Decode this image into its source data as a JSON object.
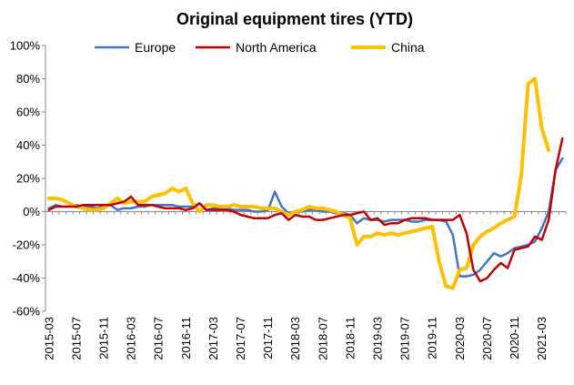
{
  "chart_data": {
    "type": "line",
    "title": "Original equipment tires (YTD)",
    "xlabel": "",
    "ylabel": "",
    "ylim": [
      -0.6,
      1.0
    ],
    "y_ticks": [
      -0.6,
      -0.4,
      -0.2,
      0,
      0.2,
      0.4,
      0.6,
      0.8,
      1.0
    ],
    "y_tick_labels": [
      "-60%",
      "-40%",
      "-20%",
      "0%",
      "20%",
      "40%",
      "60%",
      "80%",
      "100%"
    ],
    "x_tick_labels": [
      "2015-03",
      "2015-07",
      "2015-11",
      "2016-03",
      "2016-07",
      "2016-11",
      "2017-03",
      "2017-07",
      "2017-11",
      "2018-03",
      "2018-07",
      "2018-11",
      "2019-03",
      "2019-07",
      "2019-11",
      "2020-03",
      "2020-07",
      "2020-11",
      "2021-03"
    ],
    "x_tick_interval_months": 4,
    "grid": false,
    "legend_position": "top",
    "categories": [
      "2015-03",
      "2015-04",
      "2015-05",
      "2015-06",
      "2015-07",
      "2015-08",
      "2015-09",
      "2015-10",
      "2015-11",
      "2015-12",
      "2016-01",
      "2016-02",
      "2016-03",
      "2016-04",
      "2016-05",
      "2016-06",
      "2016-07",
      "2016-08",
      "2016-09",
      "2016-10",
      "2016-11",
      "2016-12",
      "2017-01",
      "2017-02",
      "2017-03",
      "2017-04",
      "2017-05",
      "2017-06",
      "2017-07",
      "2017-08",
      "2017-09",
      "2017-10",
      "2017-11",
      "2017-12",
      "2018-01",
      "2018-02",
      "2018-03",
      "2018-04",
      "2018-05",
      "2018-06",
      "2018-07",
      "2018-08",
      "2018-09",
      "2018-10",
      "2018-11",
      "2018-12",
      "2019-01",
      "2019-02",
      "2019-03",
      "2019-04",
      "2019-05",
      "2019-06",
      "2019-07",
      "2019-08",
      "2019-09",
      "2019-10",
      "2019-11",
      "2019-12",
      "2020-01",
      "2020-02",
      "2020-03",
      "2020-04",
      "2020-05",
      "2020-06",
      "2020-07",
      "2020-08",
      "2020-09",
      "2020-10",
      "2020-11",
      "2020-12",
      "2021-01",
      "2021-02",
      "2021-03",
      "2021-04",
      "2021-05",
      "2021-06"
    ],
    "series": [
      {
        "name": "Europe",
        "color": "#4472C4",
        "values": [
          0.02,
          0.04,
          0.03,
          0.03,
          0.04,
          0.03,
          0.03,
          0.02,
          0.03,
          0.04,
          0.01,
          0.02,
          0.02,
          0.03,
          0.03,
          0.04,
          0.04,
          0.04,
          0.04,
          0.03,
          0.03,
          0.03,
          0.05,
          0.01,
          0.02,
          0.02,
          0.02,
          0.01,
          0.01,
          0.01,
          0.0,
          0.0,
          0.01,
          0.12,
          0.03,
          -0.01,
          0.0,
          0.0,
          0.01,
          0.01,
          0.0,
          0.0,
          -0.01,
          -0.01,
          -0.02,
          -0.07,
          -0.04,
          -0.05,
          -0.05,
          -0.06,
          -0.05,
          -0.05,
          -0.05,
          -0.06,
          -0.06,
          -0.05,
          -0.05,
          -0.05,
          -0.06,
          -0.14,
          -0.39,
          -0.39,
          -0.38,
          -0.35,
          -0.3,
          -0.25,
          -0.27,
          -0.25,
          -0.22,
          -0.21,
          -0.2,
          -0.18,
          -0.1,
          0.0,
          0.25,
          0.32
        ]
      },
      {
        "name": "North America",
        "color": "#C00000",
        "values": [
          0.01,
          0.03,
          0.03,
          0.03,
          0.03,
          0.04,
          0.04,
          0.04,
          0.04,
          0.04,
          0.05,
          0.06,
          0.09,
          0.04,
          0.04,
          0.04,
          0.03,
          0.02,
          0.02,
          0.02,
          0.01,
          0.02,
          0.05,
          0.01,
          0.01,
          0.01,
          0.01,
          0.0,
          -0.02,
          -0.03,
          -0.04,
          -0.04,
          -0.04,
          -0.02,
          -0.01,
          -0.05,
          -0.02,
          -0.03,
          -0.03,
          -0.05,
          -0.05,
          -0.04,
          -0.03,
          -0.02,
          -0.02,
          -0.01,
          0.0,
          -0.05,
          -0.04,
          -0.08,
          -0.07,
          -0.07,
          -0.05,
          -0.04,
          -0.04,
          -0.04,
          -0.05,
          -0.05,
          -0.05,
          -0.05,
          -0.02,
          -0.13,
          -0.35,
          -0.42,
          -0.4,
          -0.35,
          -0.31,
          -0.34,
          -0.23,
          -0.22,
          -0.21,
          -0.15,
          -0.17,
          -0.05,
          0.25,
          0.44
        ]
      },
      {
        "name": "China",
        "color": "#FFC000",
        "values": [
          0.08,
          0.08,
          0.07,
          0.05,
          0.03,
          0.02,
          0.01,
          0.01,
          0.02,
          0.05,
          0.08,
          0.05,
          0.06,
          0.06,
          0.06,
          0.09,
          0.1,
          0.11,
          0.14,
          0.12,
          0.14,
          0.05,
          0.0,
          0.04,
          0.04,
          0.03,
          0.03,
          0.04,
          0.03,
          0.03,
          0.03,
          0.02,
          0.02,
          0.02,
          0.0,
          -0.02,
          0.0,
          0.01,
          0.03,
          0.02,
          0.02,
          0.01,
          0.0,
          -0.02,
          -0.04,
          -0.2,
          -0.15,
          -0.15,
          -0.13,
          -0.14,
          -0.13,
          -0.14,
          -0.13,
          -0.12,
          -0.11,
          -0.1,
          -0.09,
          -0.3,
          -0.45,
          -0.46,
          -0.35,
          -0.34,
          -0.2,
          -0.15,
          -0.12,
          -0.1,
          -0.07,
          -0.05,
          -0.03,
          0.22,
          0.77,
          0.8,
          0.5,
          0.37,
          null,
          null
        ]
      }
    ]
  }
}
